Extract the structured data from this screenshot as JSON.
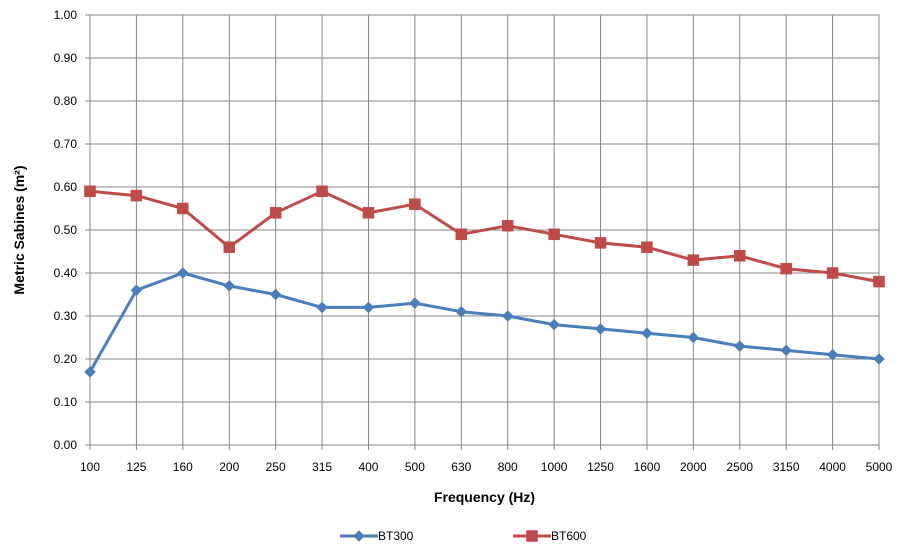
{
  "chart_data": {
    "type": "line",
    "title": "",
    "xlabel": "Frequency (Hz)",
    "ylabel": "Metric Sabines (m²)",
    "categories": [
      "100",
      "125",
      "160",
      "200",
      "250",
      "315",
      "400",
      "500",
      "630",
      "800",
      "1000",
      "1250",
      "1600",
      "2000",
      "2500",
      "3150",
      "4000",
      "5000"
    ],
    "ylim": [
      0,
      1
    ],
    "yticks": [
      "0.00",
      "0.10",
      "0.20",
      "0.30",
      "0.40",
      "0.50",
      "0.60",
      "0.70",
      "0.80",
      "0.90",
      "1.00"
    ],
    "grid": true,
    "legend_position": "bottom",
    "series": [
      {
        "name": "BT300",
        "color": "#4a7ebb",
        "marker": "diamond",
        "values": [
          0.17,
          0.36,
          0.4,
          0.37,
          0.35,
          0.32,
          0.32,
          0.33,
          0.31,
          0.3,
          0.28,
          0.27,
          0.26,
          0.25,
          0.23,
          0.22,
          0.21,
          0.2
        ]
      },
      {
        "name": "BT600",
        "color": "#be4b48",
        "marker": "square",
        "values": [
          0.59,
          0.58,
          0.55,
          0.46,
          0.54,
          0.59,
          0.54,
          0.56,
          0.49,
          0.51,
          0.49,
          0.47,
          0.46,
          0.43,
          0.44,
          0.41,
          0.4,
          0.38
        ]
      }
    ]
  }
}
